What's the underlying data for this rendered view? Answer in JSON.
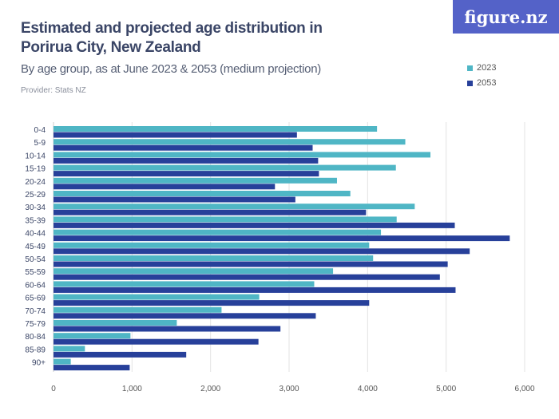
{
  "header": {
    "title": "Estimated and projected age distribution in Porirua City, New Zealand",
    "subtitle": "By age group, as at June 2023 & 2053 (medium projection)",
    "provider": "Provider: Stats NZ",
    "logo": "figure.nz"
  },
  "chart_data": {
    "type": "bar",
    "orientation": "horizontal",
    "title": "Estimated and projected age distribution in Porirua City, New Zealand",
    "categories": [
      "0-4",
      "5-9",
      "10-14",
      "15-19",
      "20-24",
      "25-29",
      "30-34",
      "35-39",
      "40-44",
      "45-49",
      "50-54",
      "55-59",
      "60-64",
      "65-69",
      "70-74",
      "75-79",
      "80-84",
      "85-89",
      "90+"
    ],
    "series": [
      {
        "name": "2023",
        "color": "#4fb6c5",
        "values": [
          4120,
          4480,
          4800,
          4360,
          3610,
          3780,
          4600,
          4370,
          4170,
          4020,
          4070,
          3560,
          3320,
          2620,
          2140,
          1570,
          980,
          400,
          220
        ]
      },
      {
        "name": "2053",
        "color": "#27409a",
        "values": [
          3100,
          3300,
          3370,
          3380,
          2820,
          3080,
          3980,
          5110,
          5810,
          5300,
          5020,
          4920,
          5120,
          4020,
          3340,
          2890,
          2610,
          1690,
          970
        ]
      }
    ],
    "xlim": [
      0,
      6000
    ],
    "xticks": [
      "0",
      "1,000",
      "2,000",
      "3,000",
      "4,000",
      "5,000",
      "6,000"
    ],
    "grid": true,
    "legend": "top-right"
  }
}
